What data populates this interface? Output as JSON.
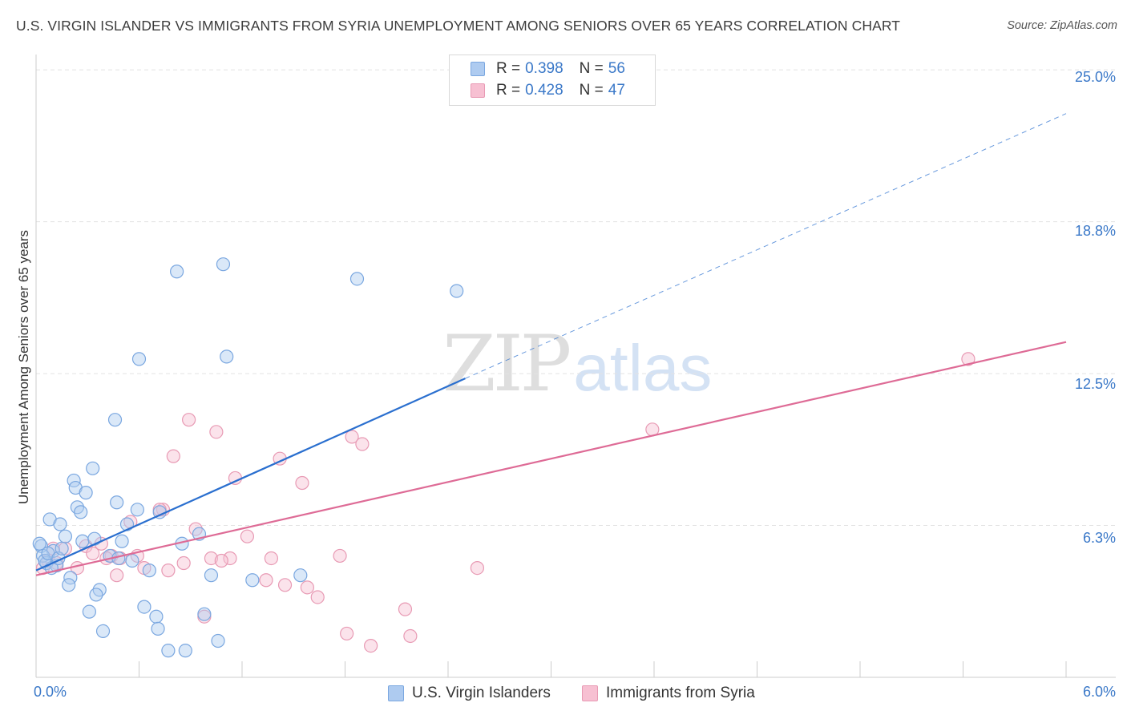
{
  "header": {
    "title": "U.S. VIRGIN ISLANDER VS IMMIGRANTS FROM SYRIA UNEMPLOYMENT AMONG SENIORS OVER 65 YEARS CORRELATION CHART",
    "source": "Source: ZipAtlas.com"
  },
  "watermark": {
    "zip": "ZIP",
    "atlas": "atlas"
  },
  "legend_top": {
    "row1": {
      "r_label": "R =",
      "r_value": "0.398",
      "n_label": "N =",
      "n_value": "56"
    },
    "row2": {
      "r_label": "R =",
      "r_value": "0.428",
      "n_label": "N =",
      "n_value": "47"
    }
  },
  "legend_bottom": {
    "series1": "U.S. Virgin Islanders",
    "series2": "Immigrants from Syria"
  },
  "axes": {
    "ylabel": "Unemployment Among Seniors over 65 years",
    "x_min_label": "0.0%",
    "x_max_label": "6.0%",
    "y_ticks": [
      "25.0%",
      "18.8%",
      "12.5%",
      "6.3%"
    ]
  },
  "colors": {
    "blue_fill": "#aecbf0",
    "blue_stroke": "#7aa7e0",
    "blue_line": "#2a6fcf",
    "pink_fill": "#f7c0d2",
    "pink_stroke": "#e89ab4",
    "pink_line": "#de6b96",
    "grid": "#e2e2e2",
    "axis": "#cccccc"
  },
  "chart_data": {
    "type": "scatter",
    "title": "U.S. VIRGIN ISLANDER VS IMMIGRANTS FROM SYRIA UNEMPLOYMENT AMONG SENIORS OVER 65 YEARS CORRELATION CHART",
    "xlabel": "",
    "ylabel": "Unemployment Among Seniors over 65 years",
    "xlim": [
      0,
      6.0
    ],
    "ylim": [
      0,
      25.5
    ],
    "y_gridlines": [
      6.25,
      12.5,
      18.75,
      25.0
    ],
    "series": [
      {
        "name": "U.S. Virgin Islanders",
        "r": 0.398,
        "n": 56,
        "trend": {
          "x0": 0.0,
          "y0": 4.4,
          "x1_solid": 2.5,
          "y1_solid": 12.3,
          "x1_dashed": 6.0,
          "y1_dashed": 23.2
        },
        "points": [
          [
            0.82,
            16.7
          ],
          [
            1.09,
            17.0
          ],
          [
            1.87,
            16.4
          ],
          [
            2.45,
            15.9
          ],
          [
            0.6,
            13.1
          ],
          [
            1.11,
            13.2
          ],
          [
            0.46,
            10.6
          ],
          [
            0.33,
            8.6
          ],
          [
            0.22,
            8.1
          ],
          [
            0.23,
            7.8
          ],
          [
            0.29,
            7.6
          ],
          [
            0.47,
            7.2
          ],
          [
            0.24,
            7.0
          ],
          [
            0.26,
            6.8
          ],
          [
            0.59,
            6.9
          ],
          [
            0.72,
            6.8
          ],
          [
            0.08,
            6.5
          ],
          [
            0.14,
            6.3
          ],
          [
            0.53,
            6.3
          ],
          [
            0.95,
            5.9
          ],
          [
            0.17,
            5.8
          ],
          [
            0.27,
            5.6
          ],
          [
            0.34,
            5.7
          ],
          [
            0.5,
            5.6
          ],
          [
            0.85,
            5.5
          ],
          [
            0.03,
            5.4
          ],
          [
            0.1,
            5.2
          ],
          [
            0.04,
            5.0
          ],
          [
            0.43,
            5.0
          ],
          [
            0.48,
            4.9
          ],
          [
            0.56,
            4.8
          ],
          [
            0.06,
            4.7
          ],
          [
            0.12,
            4.6
          ],
          [
            0.09,
            4.5
          ],
          [
            0.66,
            4.4
          ],
          [
            1.02,
            4.2
          ],
          [
            0.2,
            4.1
          ],
          [
            0.19,
            3.8
          ],
          [
            1.26,
            4.0
          ],
          [
            1.54,
            4.2
          ],
          [
            0.37,
            3.6
          ],
          [
            0.35,
            3.4
          ],
          [
            0.63,
            2.9
          ],
          [
            0.31,
            2.7
          ],
          [
            0.98,
            2.6
          ],
          [
            0.7,
            2.5
          ],
          [
            0.71,
            2.0
          ],
          [
            0.39,
            1.9
          ],
          [
            1.06,
            1.5
          ],
          [
            0.77,
            1.1
          ],
          [
            0.87,
            1.1
          ],
          [
            0.02,
            5.5
          ],
          [
            0.05,
            4.8
          ],
          [
            0.07,
            5.1
          ],
          [
            0.13,
            4.9
          ],
          [
            0.15,
            5.3
          ]
        ]
      },
      {
        "name": "Immigrants from Syria",
        "r": 0.428,
        "n": 47,
        "trend": {
          "x0": 0.0,
          "y0": 4.2,
          "x1": 6.0,
          "y1": 13.8
        },
        "points": [
          [
            5.43,
            13.1
          ],
          [
            3.59,
            10.2
          ],
          [
            0.89,
            10.6
          ],
          [
            1.05,
            10.1
          ],
          [
            1.84,
            9.9
          ],
          [
            1.9,
            9.6
          ],
          [
            0.8,
            9.1
          ],
          [
            1.42,
            9.0
          ],
          [
            1.55,
            8.0
          ],
          [
            1.16,
            8.2
          ],
          [
            0.74,
            6.9
          ],
          [
            0.72,
            6.9
          ],
          [
            0.55,
            6.4
          ],
          [
            0.93,
            6.1
          ],
          [
            1.23,
            5.8
          ],
          [
            0.38,
            5.5
          ],
          [
            0.29,
            5.4
          ],
          [
            0.1,
            5.3
          ],
          [
            0.17,
            5.3
          ],
          [
            0.33,
            5.1
          ],
          [
            0.44,
            5.0
          ],
          [
            0.59,
            5.0
          ],
          [
            0.49,
            4.9
          ],
          [
            0.41,
            4.9
          ],
          [
            0.07,
            4.8
          ],
          [
            1.02,
            4.9
          ],
          [
            1.13,
            4.9
          ],
          [
            1.08,
            4.8
          ],
          [
            1.37,
            4.9
          ],
          [
            1.77,
            5.0
          ],
          [
            0.86,
            4.7
          ],
          [
            0.63,
            4.5
          ],
          [
            0.77,
            4.4
          ],
          [
            0.24,
            4.5
          ],
          [
            0.47,
            4.2
          ],
          [
            2.57,
            4.5
          ],
          [
            1.34,
            4.0
          ],
          [
            1.45,
            3.8
          ],
          [
            1.58,
            3.7
          ],
          [
            1.64,
            3.3
          ],
          [
            0.98,
            2.5
          ],
          [
            2.15,
            2.8
          ],
          [
            1.81,
            1.8
          ],
          [
            2.18,
            1.7
          ],
          [
            1.95,
            1.3
          ],
          [
            0.04,
            4.5
          ],
          [
            0.12,
            4.7
          ]
        ]
      }
    ]
  }
}
